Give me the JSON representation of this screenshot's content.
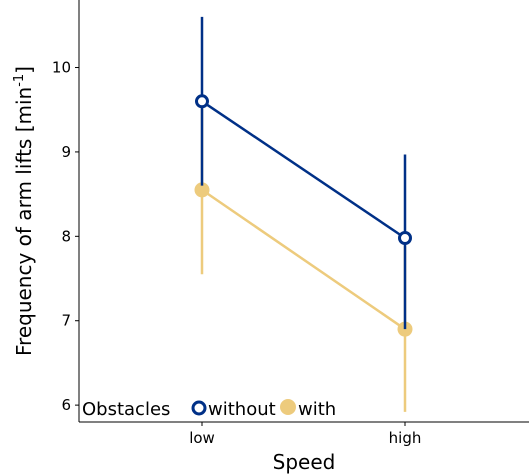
{
  "chart_data": {
    "type": "line",
    "xlabel": "Speed",
    "ylabel": "Frequency of arm lifts [min",
    "ylabel_sup": "-1",
    "ylabel_close": "]",
    "categories": [
      "low",
      "high"
    ],
    "ylim": [
      5.8,
      10.8
    ],
    "yticks": [
      "6",
      "7",
      "8",
      "9",
      "10"
    ],
    "grid": false,
    "legend_position": "bottom-left",
    "legend": {
      "title": "Obstacles",
      "entries": [
        "without",
        "with"
      ]
    },
    "series": [
      {
        "name": "without",
        "color": "#003087",
        "marker": "open-circle",
        "values": [
          9.6,
          7.98
        ],
        "lower": [
          8.6,
          6.9
        ],
        "upper": [
          10.6,
          8.97
        ]
      },
      {
        "name": "with",
        "color": "#EDCB7D",
        "marker": "filled-circle",
        "values": [
          8.55,
          6.9
        ],
        "lower": [
          7.55,
          5.92
        ],
        "upper": [
          9.55,
          7.88
        ]
      }
    ]
  }
}
